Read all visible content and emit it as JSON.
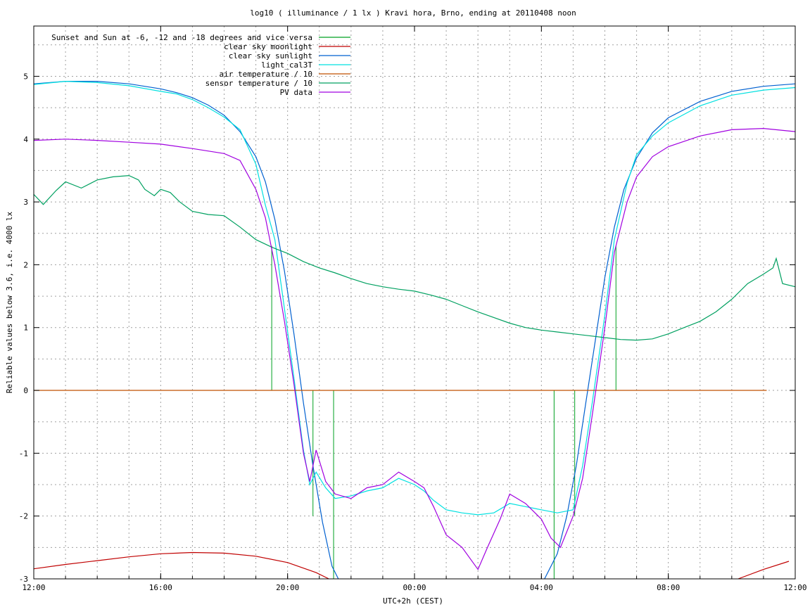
{
  "chart_data": {
    "type": "line",
    "title": "log10 ( illuminance / 1 lx ) Kravi hora, Brno, ending at 20110408 noon",
    "xlabel": "UTC+2h (CEST)",
    "ylabel": "Reliable values below 3.6, i.e. 4000 lx",
    "xlim": [
      12,
      36
    ],
    "ylim": [
      -3,
      5.8
    ],
    "grid": true,
    "legend_position": "top-left",
    "xticks": [
      {
        "v": 12,
        "label": "12:00"
      },
      {
        "v": 16,
        "label": "16:00"
      },
      {
        "v": 20,
        "label": "20:00"
      },
      {
        "v": 24,
        "label": "00:00"
      },
      {
        "v": 28,
        "label": "04:00"
      },
      {
        "v": 32,
        "label": "08:00"
      },
      {
        "v": 36,
        "label": "12:00"
      }
    ],
    "yticks": [
      {
        "v": -3,
        "label": "-3"
      },
      {
        "v": -2,
        "label": "-2"
      },
      {
        "v": -1,
        "label": "-1"
      },
      {
        "v": 0,
        "label": "0"
      },
      {
        "v": 1,
        "label": "1"
      },
      {
        "v": 2,
        "label": "2"
      },
      {
        "v": 3,
        "label": "3"
      },
      {
        "v": 4,
        "label": "4"
      },
      {
        "v": 5,
        "label": "5"
      }
    ],
    "series": [
      {
        "name": "Sunset and Sun at -6, -12 and -18 degrees and vice versa",
        "color": "#00a020",
        "kind": "impulses",
        "impulses": [
          {
            "x": 19.5,
            "y": 2.3
          },
          {
            "x": 20.8,
            "y": -2.0
          },
          {
            "x": 21.45,
            "y": -3.0
          },
          {
            "x": 28.4,
            "y": -3.0
          },
          {
            "x": 29.05,
            "y": -2.0
          },
          {
            "x": 30.35,
            "y": 2.3
          }
        ]
      },
      {
        "name": "clear sky moonlight",
        "color": "#c00000",
        "points": [
          [
            12.0,
            -2.84
          ],
          [
            13.0,
            -2.77
          ],
          [
            14.0,
            -2.71
          ],
          [
            15.0,
            -2.65
          ],
          [
            16.0,
            -2.6
          ],
          [
            17.0,
            -2.58
          ],
          [
            18.0,
            -2.59
          ],
          [
            19.0,
            -2.64
          ],
          [
            20.0,
            -2.74
          ],
          [
            20.9,
            -2.9
          ],
          [
            21.3,
            -3.0
          ]
        ],
        "points2": [
          [
            34.2,
            -3.0
          ],
          [
            35.0,
            -2.85
          ],
          [
            35.8,
            -2.72
          ]
        ]
      },
      {
        "name": "clear sky sunlight",
        "color": "#0060d0",
        "points": [
          [
            12.0,
            4.88
          ],
          [
            13.0,
            4.92
          ],
          [
            14.0,
            4.92
          ],
          [
            15.0,
            4.88
          ],
          [
            16.0,
            4.8
          ],
          [
            16.5,
            4.74
          ],
          [
            17.0,
            4.66
          ],
          [
            17.5,
            4.54
          ],
          [
            18.0,
            4.38
          ],
          [
            18.5,
            4.12
          ],
          [
            19.0,
            3.72
          ],
          [
            19.3,
            3.32
          ],
          [
            19.6,
            2.72
          ],
          [
            19.9,
            1.9
          ],
          [
            20.2,
            0.9
          ],
          [
            20.5,
            -0.2
          ],
          [
            20.8,
            -1.2
          ],
          [
            21.1,
            -2.1
          ],
          [
            21.4,
            -2.8
          ],
          [
            21.6,
            -3.0
          ]
        ],
        "points2": [
          [
            28.1,
            -3.0
          ],
          [
            28.5,
            -2.6
          ],
          [
            28.8,
            -2.0
          ],
          [
            29.1,
            -1.2
          ],
          [
            29.4,
            -0.2
          ],
          [
            29.7,
            0.8
          ],
          [
            30.0,
            1.8
          ],
          [
            30.3,
            2.6
          ],
          [
            30.6,
            3.2
          ],
          [
            31.0,
            3.7
          ],
          [
            31.5,
            4.1
          ],
          [
            32.0,
            4.34
          ],
          [
            33.0,
            4.6
          ],
          [
            34.0,
            4.76
          ],
          [
            35.0,
            4.84
          ],
          [
            36.0,
            4.88
          ]
        ]
      },
      {
        "name": "light_cal3T",
        "color": "#00e0e0",
        "points": [
          [
            12.0,
            4.87
          ],
          [
            13.0,
            4.92
          ],
          [
            14.0,
            4.9
          ],
          [
            15.0,
            4.85
          ],
          [
            16.0,
            4.76
          ],
          [
            16.5,
            4.72
          ],
          [
            17.0,
            4.63
          ],
          [
            17.5,
            4.5
          ],
          [
            18.0,
            4.35
          ],
          [
            18.5,
            4.15
          ],
          [
            19.0,
            3.6
          ],
          [
            19.3,
            2.95
          ],
          [
            19.6,
            2.4
          ],
          [
            19.9,
            1.3
          ],
          [
            20.2,
            0.2
          ],
          [
            20.5,
            -0.95
          ],
          [
            20.7,
            -1.5
          ],
          [
            20.9,
            -1.3
          ],
          [
            21.2,
            -1.55
          ],
          [
            21.5,
            -1.72
          ],
          [
            22.0,
            -1.68
          ],
          [
            22.5,
            -1.6
          ],
          [
            23.0,
            -1.55
          ],
          [
            23.5,
            -1.4
          ],
          [
            24.0,
            -1.5
          ],
          [
            24.3,
            -1.6
          ],
          [
            24.6,
            -1.75
          ],
          [
            25.0,
            -1.9
          ],
          [
            25.5,
            -1.95
          ],
          [
            26.0,
            -1.98
          ],
          [
            26.5,
            -1.95
          ],
          [
            27.0,
            -1.8
          ],
          [
            27.5,
            -1.85
          ],
          [
            28.0,
            -1.9
          ],
          [
            28.5,
            -1.95
          ],
          [
            29.0,
            -1.9
          ],
          [
            29.3,
            -1.2
          ],
          [
            29.6,
            -0.2
          ],
          [
            30.0,
            1.2
          ],
          [
            30.3,
            2.4
          ],
          [
            30.7,
            3.3
          ],
          [
            31.0,
            3.75
          ],
          [
            31.5,
            4.05
          ],
          [
            32.0,
            4.26
          ],
          [
            33.0,
            4.53
          ],
          [
            34.0,
            4.7
          ],
          [
            35.0,
            4.78
          ],
          [
            36.0,
            4.82
          ]
        ]
      },
      {
        "name": "air temperature / 10",
        "color": "#c05000",
        "points": [
          [
            12.0,
            0.0
          ],
          [
            35.1,
            0.0
          ]
        ]
      },
      {
        "name": "sensor temperature / 10",
        "color": "#00a060",
        "points": [
          [
            12.0,
            3.12
          ],
          [
            12.3,
            2.96
          ],
          [
            12.7,
            3.18
          ],
          [
            13.0,
            3.32
          ],
          [
            13.5,
            3.22
          ],
          [
            14.0,
            3.35
          ],
          [
            14.5,
            3.4
          ],
          [
            15.0,
            3.42
          ],
          [
            15.3,
            3.35
          ],
          [
            15.5,
            3.2
          ],
          [
            15.8,
            3.1
          ],
          [
            16.0,
            3.2
          ],
          [
            16.3,
            3.15
          ],
          [
            16.6,
            3.0
          ],
          [
            17.0,
            2.85
          ],
          [
            17.5,
            2.8
          ],
          [
            18.0,
            2.78
          ],
          [
            18.5,
            2.6
          ],
          [
            19.0,
            2.4
          ],
          [
            19.5,
            2.28
          ],
          [
            20.0,
            2.18
          ],
          [
            20.5,
            2.05
          ],
          [
            21.0,
            1.95
          ],
          [
            21.5,
            1.87
          ],
          [
            22.0,
            1.78
          ],
          [
            22.5,
            1.7
          ],
          [
            23.0,
            1.65
          ],
          [
            23.5,
            1.61
          ],
          [
            24.0,
            1.58
          ],
          [
            24.5,
            1.52
          ],
          [
            25.0,
            1.45
          ],
          [
            25.5,
            1.35
          ],
          [
            26.0,
            1.25
          ],
          [
            26.5,
            1.16
          ],
          [
            27.0,
            1.07
          ],
          [
            27.5,
            1.0
          ],
          [
            28.0,
            0.96
          ],
          [
            28.5,
            0.93
          ],
          [
            29.0,
            0.9
          ],
          [
            29.5,
            0.87
          ],
          [
            30.0,
            0.84
          ],
          [
            30.5,
            0.81
          ],
          [
            31.0,
            0.8
          ],
          [
            31.5,
            0.82
          ],
          [
            32.0,
            0.9
          ],
          [
            32.5,
            1.0
          ],
          [
            33.0,
            1.1
          ],
          [
            33.5,
            1.25
          ],
          [
            34.0,
            1.45
          ],
          [
            34.5,
            1.7
          ],
          [
            35.0,
            1.85
          ],
          [
            35.3,
            1.95
          ],
          [
            35.4,
            2.1
          ],
          [
            35.5,
            1.9
          ],
          [
            35.6,
            1.7
          ],
          [
            36.0,
            1.65
          ]
        ]
      },
      {
        "name": "PV data",
        "color": "#a000e0",
        "points": [
          [
            12.0,
            3.98
          ],
          [
            13.0,
            4.0
          ],
          [
            14.0,
            3.98
          ],
          [
            15.0,
            3.95
          ],
          [
            16.0,
            3.92
          ],
          [
            17.0,
            3.85
          ],
          [
            18.0,
            3.77
          ],
          [
            18.5,
            3.66
          ],
          [
            19.0,
            3.2
          ],
          [
            19.3,
            2.75
          ],
          [
            19.6,
            2.0
          ],
          [
            19.9,
            1.1
          ],
          [
            20.2,
            0.1
          ],
          [
            20.5,
            -1.0
          ],
          [
            20.7,
            -1.45
          ],
          [
            20.9,
            -0.95
          ],
          [
            21.2,
            -1.45
          ],
          [
            21.5,
            -1.65
          ],
          [
            22.0,
            -1.72
          ],
          [
            22.5,
            -1.55
          ],
          [
            23.0,
            -1.5
          ],
          [
            23.5,
            -1.3
          ],
          [
            24.0,
            -1.45
          ],
          [
            24.3,
            -1.55
          ],
          [
            24.6,
            -1.85
          ],
          [
            25.0,
            -2.3
          ],
          [
            25.5,
            -2.5
          ],
          [
            26.0,
            -2.85
          ],
          [
            26.3,
            -2.5
          ],
          [
            26.7,
            -2.05
          ],
          [
            27.0,
            -1.65
          ],
          [
            27.5,
            -1.8
          ],
          [
            28.0,
            -2.05
          ],
          [
            28.3,
            -2.35
          ],
          [
            28.6,
            -2.5
          ],
          [
            29.0,
            -2.0
          ],
          [
            29.3,
            -1.4
          ],
          [
            29.6,
            -0.4
          ],
          [
            30.0,
            1.0
          ],
          [
            30.3,
            2.2
          ],
          [
            30.7,
            3.0
          ],
          [
            31.0,
            3.4
          ],
          [
            31.5,
            3.72
          ],
          [
            32.0,
            3.88
          ],
          [
            33.0,
            4.05
          ],
          [
            34.0,
            4.15
          ],
          [
            35.0,
            4.17
          ],
          [
            36.0,
            4.12
          ]
        ]
      }
    ]
  }
}
